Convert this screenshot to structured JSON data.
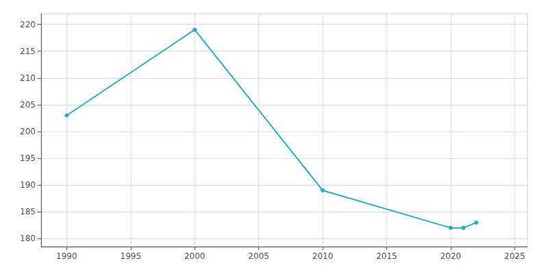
{
  "chart_data": {
    "type": "line",
    "x": [
      1990,
      2000,
      2010,
      2020,
      2021,
      2022
    ],
    "values": [
      203,
      219,
      189,
      182,
      182,
      183
    ],
    "color": "#20B2C0",
    "marker": "circle",
    "xlim": [
      1988,
      2026
    ],
    "xticks": [
      1990,
      1995,
      2000,
      2005,
      2010,
      2015,
      2020,
      2025
    ],
    "ylim": [
      178.5,
      222
    ],
    "yticks": [
      180,
      185,
      190,
      195,
      200,
      205,
      210,
      215,
      220
    ],
    "grid": true
  }
}
